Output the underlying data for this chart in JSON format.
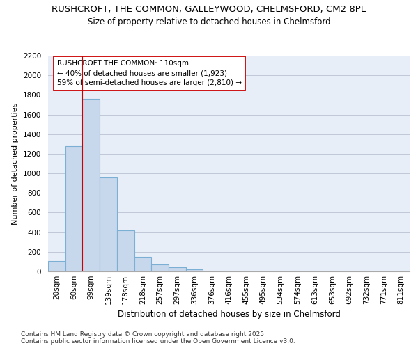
{
  "title": "RUSHCROFT, THE COMMON, GALLEYWOOD, CHELMSFORD, CM2 8PL",
  "subtitle": "Size of property relative to detached houses in Chelmsford",
  "xlabel": "Distribution of detached houses by size in Chelmsford",
  "ylabel": "Number of detached properties",
  "categories": [
    "20sqm",
    "60sqm",
    "99sqm",
    "139sqm",
    "178sqm",
    "218sqm",
    "257sqm",
    "297sqm",
    "336sqm",
    "376sqm",
    "416sqm",
    "455sqm",
    "495sqm",
    "534sqm",
    "574sqm",
    "613sqm",
    "653sqm",
    "692sqm",
    "732sqm",
    "771sqm",
    "811sqm"
  ],
  "values": [
    110,
    1280,
    1760,
    955,
    420,
    150,
    70,
    40,
    20,
    0,
    0,
    0,
    0,
    0,
    0,
    0,
    0,
    0,
    0,
    0,
    0
  ],
  "bar_color": "#c8d8ec",
  "bar_edge_color": "#7bafd4",
  "bar_edge_width": 0.8,
  "vline_x": 1.5,
  "vline_color": "#cc0000",
  "annotation_text": "RUSHCROFT THE COMMON: 110sqm\n← 40% of detached houses are smaller (1,923)\n59% of semi-detached houses are larger (2,810) →",
  "annotation_box_facecolor": "white",
  "annotation_box_edgecolor": "#cc0000",
  "ylim": [
    0,
    2200
  ],
  "yticks": [
    0,
    200,
    400,
    600,
    800,
    1000,
    1200,
    1400,
    1600,
    1800,
    2000,
    2200
  ],
  "grid_color": "#c0c8d8",
  "bg_color": "#e8eef8",
  "footer": "Contains HM Land Registry data © Crown copyright and database right 2025.\nContains public sector information licensed under the Open Government Licence v3.0.",
  "title_fontsize": 9.5,
  "subtitle_fontsize": 8.5,
  "xlabel_fontsize": 8.5,
  "ylabel_fontsize": 8.0,
  "tick_fontsize": 7.5,
  "annotation_fontsize": 7.5,
  "footer_fontsize": 6.5
}
